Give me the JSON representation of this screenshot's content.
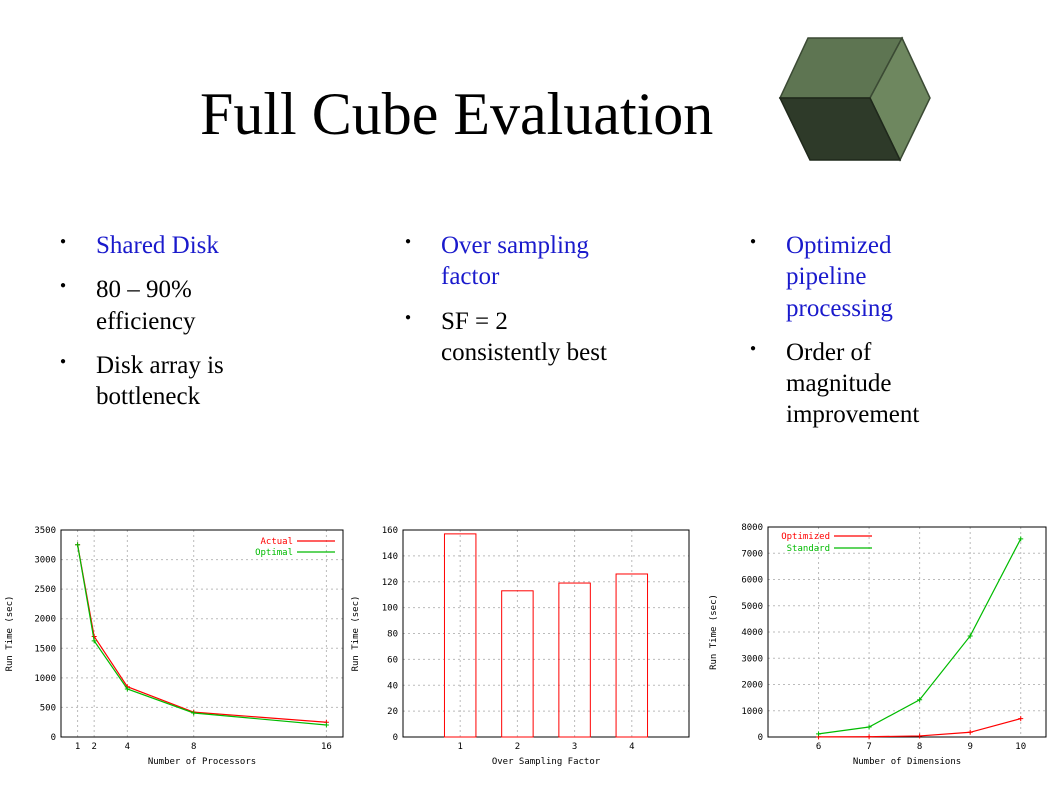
{
  "slide": {
    "title": "Full Cube Evaluation",
    "columns": [
      {
        "bullets": [
          {
            "text": "Shared Disk",
            "highlight": true
          },
          {
            "text": "80 – 90% efficiency",
            "highlight": false
          },
          {
            "text": "Disk array is bottleneck",
            "highlight": false
          }
        ]
      },
      {
        "bullets": [
          {
            "text": "Over sampling factor",
            "highlight": true
          },
          {
            "text": "SF = 2 consistently best",
            "highlight": false
          }
        ]
      },
      {
        "bullets": [
          {
            "text": "Optimized pipeline processing",
            "highlight": true
          },
          {
            "text": "Order of magnitude improvement",
            "highlight": false
          }
        ]
      }
    ]
  },
  "colors": {
    "highlight": "#1a1acc",
    "red": "#ff0000",
    "green": "#00bb00",
    "cube": "#5e7552"
  },
  "chart_data": [
    {
      "type": "line",
      "xlabel": "Number of Processors",
      "ylabel": "Run Time (sec)",
      "xlim": [
        0,
        17
      ],
      "ylim": [
        0,
        3500
      ],
      "xticks": [
        1,
        2,
        4,
        8,
        16
      ],
      "yticks": [
        0,
        500,
        1000,
        1500,
        2000,
        2500,
        3000,
        3500
      ],
      "grid": true,
      "legend": "top-right",
      "series": [
        {
          "name": "Actual",
          "color": "#ff0000",
          "x": [
            1,
            2,
            4,
            8,
            16
          ],
          "y": [
            3250,
            1700,
            850,
            420,
            250
          ]
        },
        {
          "name": "Optimal",
          "color": "#00bb00",
          "x": [
            1,
            2,
            4,
            8,
            16
          ],
          "y": [
            3250,
            1625,
            812,
            406,
            203
          ]
        }
      ]
    },
    {
      "type": "bar",
      "xlabel": "Over Sampling Factor",
      "ylabel": "Run Time (sec)",
      "categories": [
        "1",
        "2",
        "3",
        "4"
      ],
      "values": [
        157,
        113,
        119,
        126
      ],
      "xlim": [
        0,
        5
      ],
      "ylim": [
        0,
        160
      ],
      "yticks": [
        0,
        20,
        40,
        60,
        80,
        100,
        120,
        140,
        160
      ],
      "grid": true,
      "color": "#ff0000"
    },
    {
      "type": "line",
      "xlabel": "Number of Dimensions",
      "ylabel": "Run Time (sec)",
      "xlim": [
        5,
        10.5
      ],
      "ylim": [
        0,
        8000
      ],
      "xticks": [
        6,
        7,
        8,
        9,
        10
      ],
      "yticks": [
        0,
        1000,
        2000,
        3000,
        4000,
        5000,
        6000,
        7000,
        8000
      ],
      "grid": true,
      "legend": "top-left",
      "series": [
        {
          "name": "Optimized",
          "color": "#ff0000",
          "x": [
            6,
            7,
            8,
            9,
            10
          ],
          "y": [
            5,
            10,
            40,
            180,
            700
          ]
        },
        {
          "name": "Standard",
          "color": "#00bb00",
          "x": [
            6,
            7,
            8,
            9,
            10
          ],
          "y": [
            120,
            380,
            1420,
            3850,
            7550
          ]
        }
      ]
    }
  ]
}
